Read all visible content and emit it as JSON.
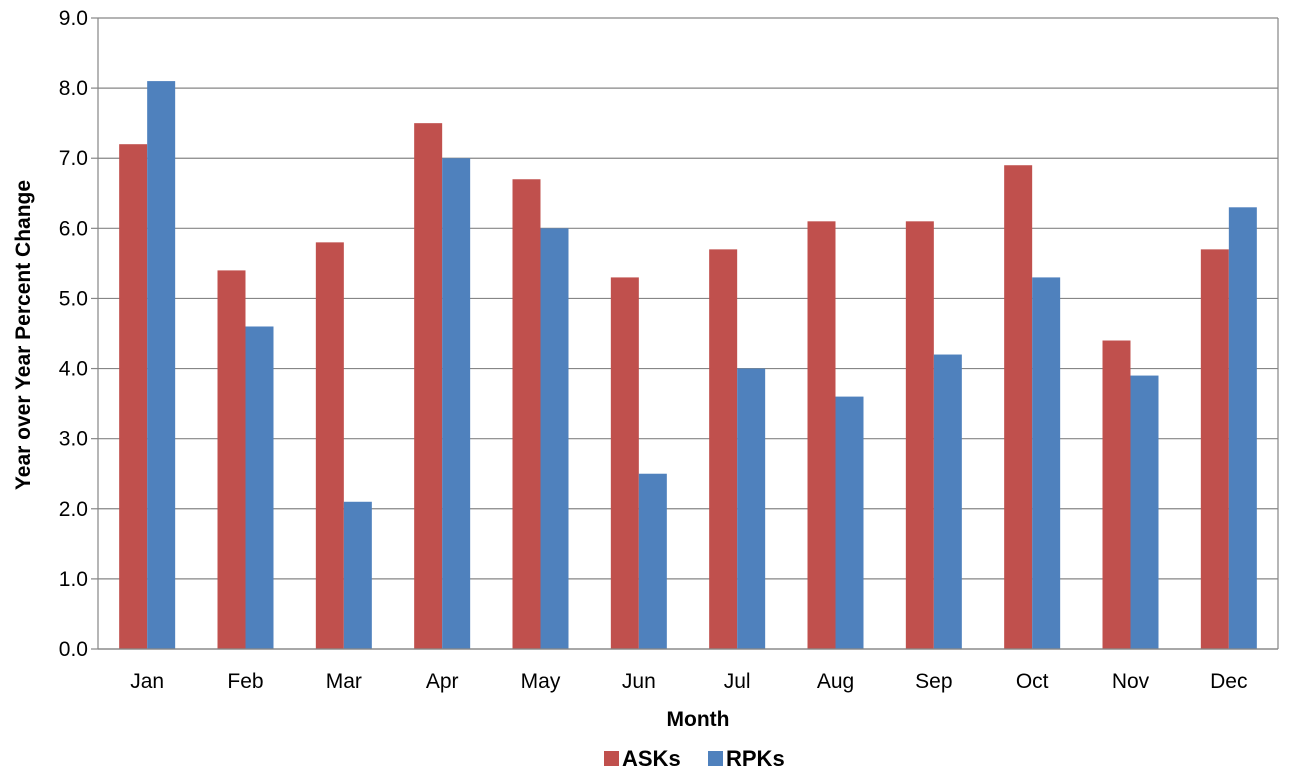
{
  "chart_data": {
    "type": "bar",
    "title": "",
    "xlabel": "Month",
    "ylabel": "Year over Year Percent Change",
    "categories": [
      "Jan",
      "Feb",
      "Mar",
      "Apr",
      "May",
      "Jun",
      "Jul",
      "Aug",
      "Sep",
      "Oct",
      "Nov",
      "Dec"
    ],
    "series": [
      {
        "name": "ASKs",
        "color": "#C0504D",
        "values": [
          7.2,
          5.4,
          5.8,
          7.5,
          6.7,
          5.3,
          5.7,
          6.1,
          6.1,
          6.9,
          4.4,
          5.7
        ]
      },
      {
        "name": "RPKs",
        "color": "#4F81BD",
        "values": [
          8.1,
          4.6,
          2.1,
          7.0,
          6.0,
          2.5,
          4.0,
          3.6,
          4.2,
          5.3,
          3.9,
          6.3
        ]
      }
    ],
    "ylim": [
      0,
      9
    ],
    "ytick_step": 1.0,
    "ytick_labels": [
      "0.0",
      "1.0",
      "2.0",
      "3.0",
      "4.0",
      "5.0",
      "6.0",
      "7.0",
      "8.0",
      "9.0"
    ],
    "grid": true,
    "legend_position": "bottom"
  }
}
